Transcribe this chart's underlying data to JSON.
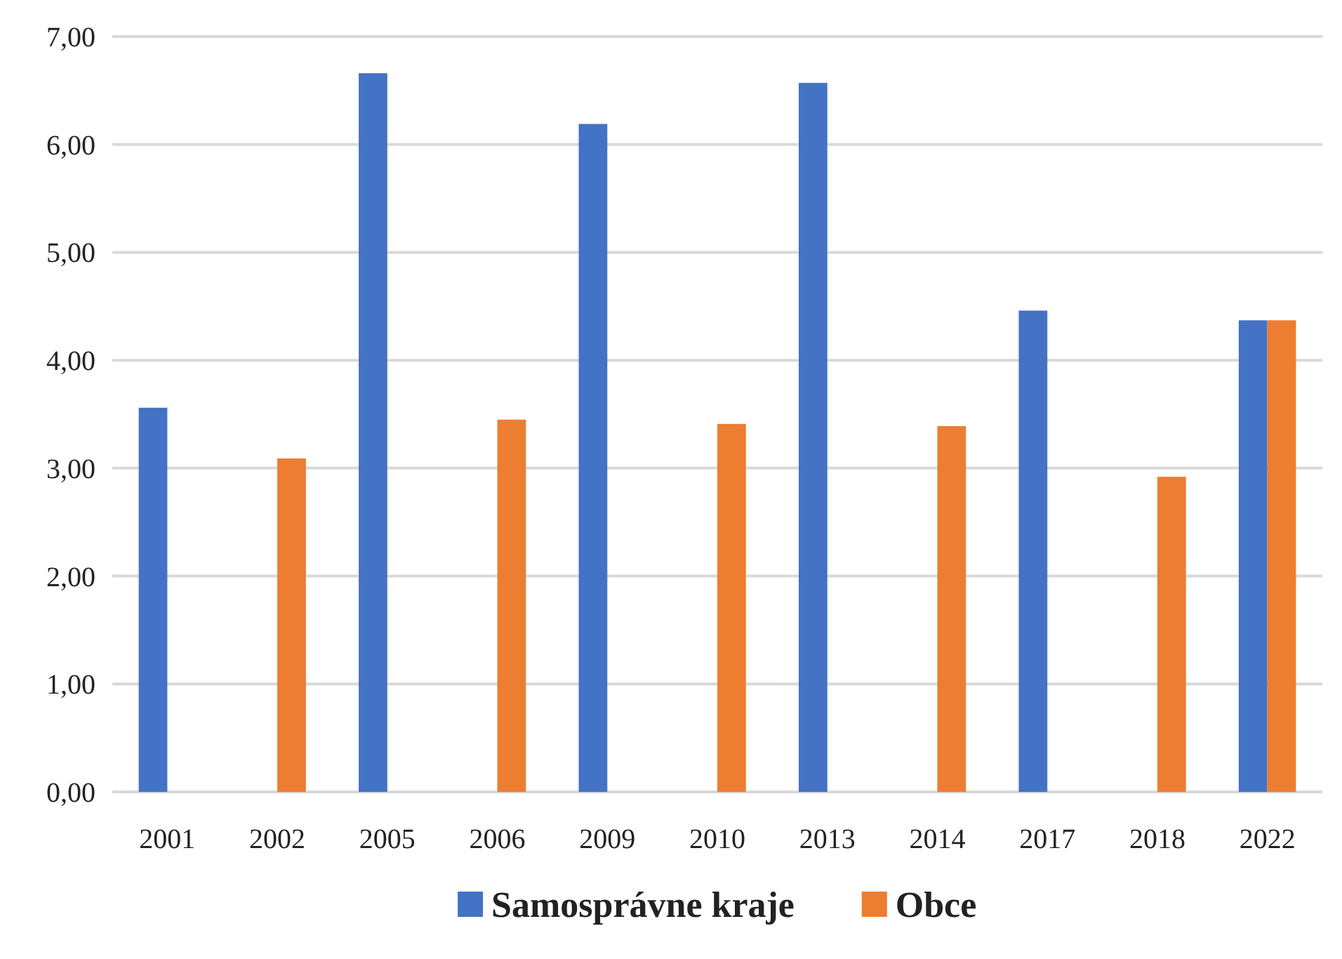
{
  "chart_data": {
    "type": "bar",
    "categories": [
      "2001",
      "2002",
      "2005",
      "2006",
      "2009",
      "2010",
      "2013",
      "2014",
      "2017",
      "2018",
      "2022"
    ],
    "series": [
      {
        "name": "Samosprávne kraje",
        "color": "#4472c4",
        "values": [
          3.56,
          null,
          6.66,
          null,
          6.19,
          null,
          6.57,
          null,
          4.46,
          null,
          4.37
        ]
      },
      {
        "name": "Obce",
        "color": "#ed7d31",
        "values": [
          null,
          3.09,
          null,
          3.45,
          null,
          3.41,
          null,
          3.39,
          null,
          2.92,
          4.37
        ]
      }
    ],
    "ylim": [
      0,
      7
    ],
    "yticks": [
      {
        "value": 0,
        "label": "0,00"
      },
      {
        "value": 1,
        "label": "1,00"
      },
      {
        "value": 2,
        "label": "2,00"
      },
      {
        "value": 3,
        "label": "3,00"
      },
      {
        "value": 4,
        "label": "4,00"
      },
      {
        "value": 5,
        "label": "5,00"
      },
      {
        "value": 6,
        "label": "6,00"
      },
      {
        "value": 7,
        "label": "7,00"
      }
    ],
    "grid": "y",
    "legend": "bottom"
  }
}
